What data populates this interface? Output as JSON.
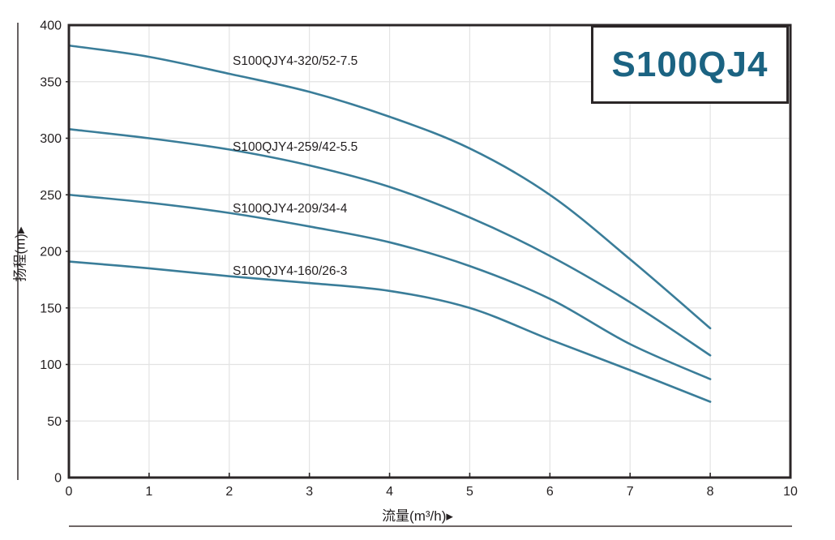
{
  "title_box": {
    "text": "S100QJ4",
    "color": "#1b6382"
  },
  "chart_data": {
    "type": "line",
    "title": "S100QJ4",
    "x": [
      0,
      1,
      2,
      3,
      4,
      5,
      6,
      7,
      8
    ],
    "series": [
      {
        "name": "S100QJY4-320/52-7.5",
        "values": [
          382,
          372,
          357,
          341,
          319,
          291,
          250,
          193,
          132
        ]
      },
      {
        "name": "S100QJY4-259/42-5.5",
        "values": [
          308,
          300,
          290,
          276,
          257,
          230,
          196,
          155,
          108
        ]
      },
      {
        "name": "S100QJY4-209/34-4",
        "values": [
          250,
          243,
          234,
          222,
          208,
          187,
          158,
          118,
          87
        ]
      },
      {
        "name": "S100QJY4-160/26-3",
        "values": [
          191,
          185,
          178,
          172,
          165,
          150,
          122,
          95,
          67
        ]
      }
    ],
    "xlabel": "流量(m³/h)▸",
    "ylabel": "扬程(m)▸",
    "x_tick_labels": [
      "0",
      "1",
      "2",
      "3",
      "4",
      "5",
      "6",
      "7",
      "8",
      "10"
    ],
    "x_tick_units": [
      0,
      1,
      2,
      3,
      4,
      5,
      6,
      7,
      8,
      9
    ],
    "y_ticks": [
      0,
      50,
      100,
      150,
      200,
      250,
      300,
      350,
      400
    ],
    "ylim": [
      0,
      400
    ],
    "x_units_span": 9,
    "grid": true,
    "legend_position": "inline-labels",
    "line_color": "#3a7d99",
    "axis_color": "#2b2627",
    "grid_color": "#e3e3e3",
    "label_color": "#231f20",
    "series_label_positions": [
      [
        287,
        80
      ],
      [
        287,
        186
      ],
      [
        287,
        262
      ],
      [
        287,
        339
      ]
    ]
  }
}
